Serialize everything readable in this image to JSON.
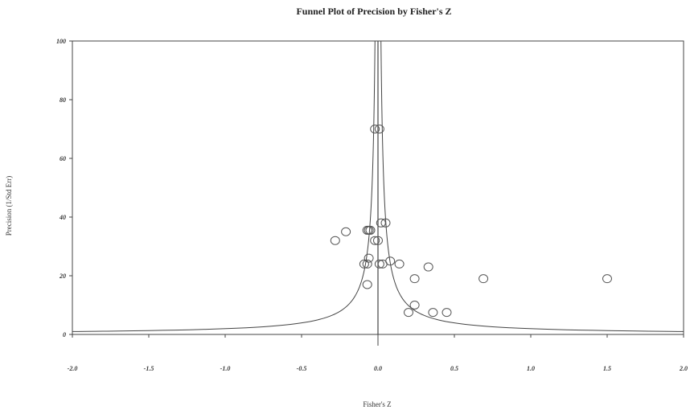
{
  "chart_data": {
    "type": "scatter",
    "title": "Funnel Plot of Precision by Fisher's Z",
    "xlabel": "Fisher's Z",
    "ylabel": "Precision (1/Std Err)",
    "xlim": [
      -2.0,
      2.0
    ],
    "ylim": [
      0,
      100
    ],
    "xticks": [
      "-2.0",
      "-1.5",
      "-1.0",
      "-0.5",
      "0.0",
      "0.5",
      "1.0",
      "1.5",
      "2.0"
    ],
    "yticks": [
      "0",
      "20",
      "40",
      "60",
      "80",
      "100"
    ],
    "combined_effect": 0.0,
    "funnel_center": 0.0,
    "points": [
      {
        "x": -0.02,
        "y": 70
      },
      {
        "x": 0.01,
        "y": 70
      },
      {
        "x": 0.02,
        "y": 38
      },
      {
        "x": 0.05,
        "y": 38
      },
      {
        "x": -0.07,
        "y": 35.5
      },
      {
        "x": -0.06,
        "y": 35.5
      },
      {
        "x": -0.05,
        "y": 35.5
      },
      {
        "x": -0.21,
        "y": 35
      },
      {
        "x": -0.28,
        "y": 32
      },
      {
        "x": -0.02,
        "y": 32
      },
      {
        "x": 0.0,
        "y": 32
      },
      {
        "x": -0.06,
        "y": 26
      },
      {
        "x": 0.08,
        "y": 25
      },
      {
        "x": 0.14,
        "y": 24
      },
      {
        "x": -0.09,
        "y": 24
      },
      {
        "x": -0.07,
        "y": 24
      },
      {
        "x": 0.01,
        "y": 24
      },
      {
        "x": 0.03,
        "y": 24
      },
      {
        "x": 0.33,
        "y": 23
      },
      {
        "x": 0.24,
        "y": 19
      },
      {
        "x": 0.69,
        "y": 19
      },
      {
        "x": 1.5,
        "y": 19
      },
      {
        "x": -0.07,
        "y": 17
      },
      {
        "x": 0.24,
        "y": 10
      },
      {
        "x": 0.2,
        "y": 7.5
      },
      {
        "x": 0.36,
        "y": 7.5
      },
      {
        "x": 0.45,
        "y": 7.5
      }
    ]
  }
}
